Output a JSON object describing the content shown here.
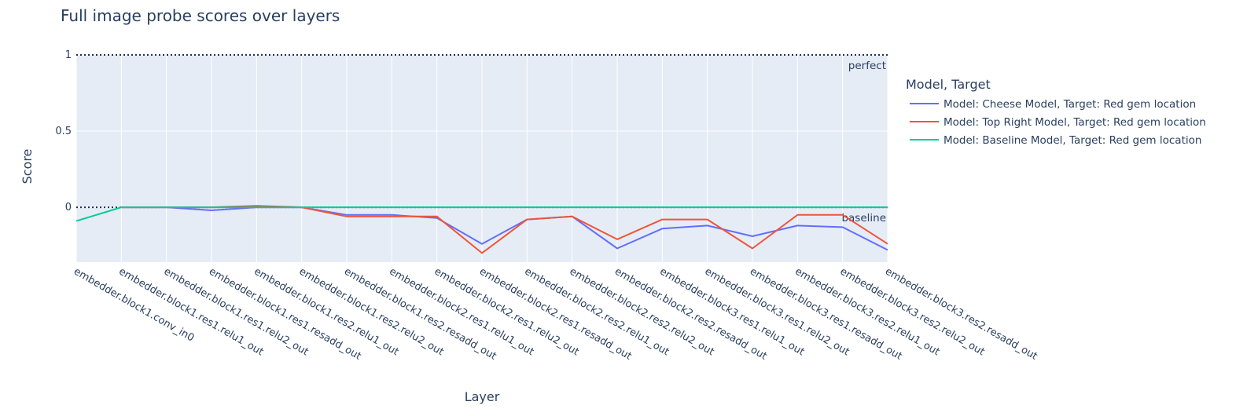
{
  "chart_data": {
    "type": "line",
    "title": "Full image probe scores over layers",
    "xlabel": "Layer",
    "ylabel": "Score",
    "ylim": [
      -0.36,
      1.0
    ],
    "yticks": [
      {
        "value": 1,
        "label": "1"
      },
      {
        "value": 0.5,
        "label": "0.5"
      },
      {
        "value": 0,
        "label": "0"
      }
    ],
    "grid": true,
    "categories": [
      "embedder.block1.conv_in0",
      "embedder.block1.res1.relu1_out",
      "embedder.block1.res1.relu2_out",
      "embedder.block1.res1.resadd_out",
      "embedder.block1.res2.relu1_out",
      "embedder.block1.res2.relu2_out",
      "embedder.block1.res2.resadd_out",
      "embedder.block2.res1.relu1_out",
      "embedder.block2.res1.relu2_out",
      "embedder.block2.res1.resadd_out",
      "embedder.block2.res2.relu1_out",
      "embedder.block2.res2.relu2_out",
      "embedder.block2.res2.resadd_out",
      "embedder.block3.res1.relu1_out",
      "embedder.block3.res1.relu2_out",
      "embedder.block3.res1.resadd_out",
      "embedder.block3.res2.relu1_out",
      "embedder.block3.res2.relu2_out",
      "embedder.block3.res2.resadd_out"
    ],
    "legend": {
      "title": "Model, Target",
      "position": "right"
    },
    "series": [
      {
        "name": "Model: Cheese Model, Target: Red gem location",
        "color": "#636efa",
        "values": [
          null,
          0.0,
          0.0,
          -0.02,
          0.0,
          0.0,
          -0.05,
          -0.05,
          -0.07,
          -0.24,
          -0.08,
          -0.06,
          -0.27,
          -0.14,
          -0.12,
          -0.19,
          -0.12,
          -0.13,
          -0.28
        ]
      },
      {
        "name": "Model: Top Right Model, Target: Red gem location",
        "color": "#ef553b",
        "values": [
          null,
          0.0,
          0.0,
          0.0,
          0.01,
          0.0,
          -0.06,
          -0.06,
          -0.06,
          -0.3,
          -0.08,
          -0.06,
          -0.21,
          -0.08,
          -0.08,
          -0.27,
          -0.05,
          -0.05,
          -0.24
        ]
      },
      {
        "name": "Model: Baseline Model, Target: Red gem location",
        "color": "#00cc96",
        "values": [
          -0.09,
          0.0,
          0.0,
          0.0,
          0.0,
          0.0,
          0.0,
          0.0,
          0.0,
          0.0,
          0.0,
          0.0,
          0.0,
          0.0,
          0.0,
          0.0,
          0.0,
          0.0,
          0.0
        ]
      }
    ],
    "reference_lines": [
      {
        "value": 1,
        "label": "perfect"
      },
      {
        "value": 0,
        "label": "baseline"
      }
    ],
    "colors": {
      "plot_bg": "#e5ecf6",
      "grid": "#ffffff",
      "text": "#2a3f5f",
      "ref_line": "#1f2d5a"
    }
  }
}
